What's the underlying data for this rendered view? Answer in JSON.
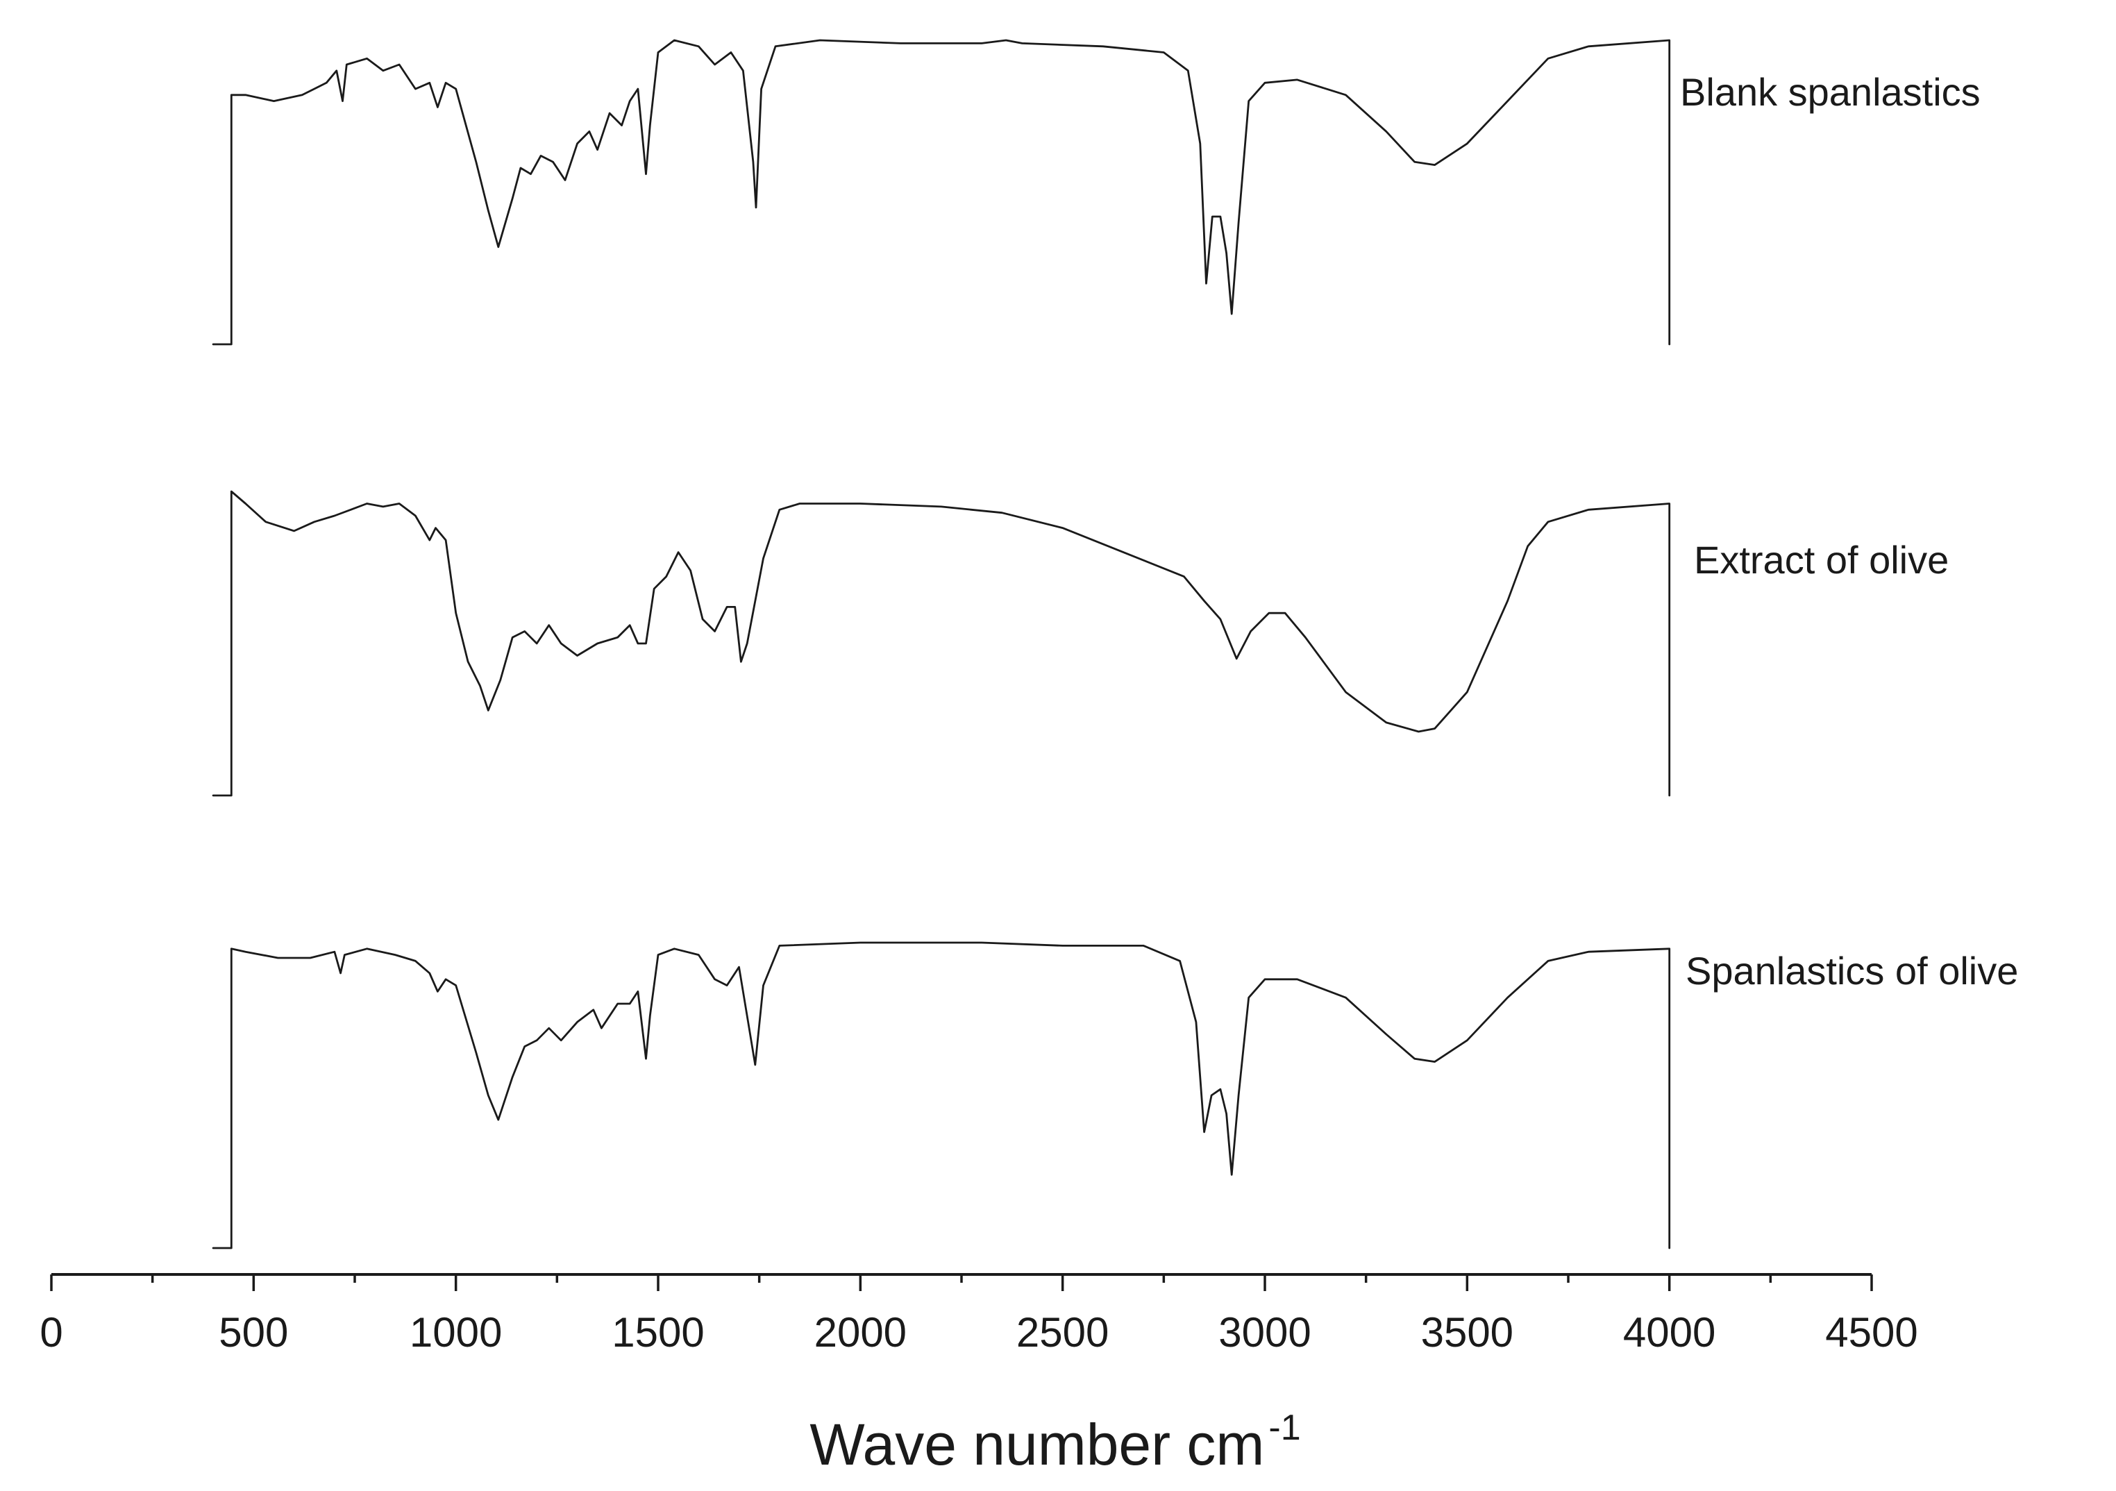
{
  "chart_data": {
    "type": "line",
    "title": "",
    "xlabel": "Wave number cm",
    "xlabel_superscript": "-1",
    "ylabel": "",
    "xlim": [
      0,
      4500
    ],
    "x_ticks": [
      "0",
      "500",
      "1000",
      "1500",
      "2000",
      "2500",
      "3000",
      "3500",
      "4000",
      "4500"
    ],
    "grid": false,
    "legend": "labels at right end of each trace",
    "stacked_offset": true,
    "series": [
      {
        "name": "Blank spanlastics",
        "points": [
          [
            400,
            0
          ],
          [
            445,
            0
          ],
          [
            445,
            0.82
          ],
          [
            480,
            0.82
          ],
          [
            550,
            0.8
          ],
          [
            620,
            0.82
          ],
          [
            680,
            0.86
          ],
          [
            705,
            0.9
          ],
          [
            720,
            0.8
          ],
          [
            730,
            0.92
          ],
          [
            780,
            0.94
          ],
          [
            820,
            0.9
          ],
          [
            860,
            0.92
          ],
          [
            900,
            0.84
          ],
          [
            935,
            0.86
          ],
          [
            955,
            0.78
          ],
          [
            975,
            0.86
          ],
          [
            1000,
            0.84
          ],
          [
            1050,
            0.6
          ],
          [
            1080,
            0.44
          ],
          [
            1105,
            0.32
          ],
          [
            1140,
            0.48
          ],
          [
            1160,
            0.58
          ],
          [
            1185,
            0.56
          ],
          [
            1210,
            0.62
          ],
          [
            1240,
            0.6
          ],
          [
            1270,
            0.54
          ],
          [
            1300,
            0.66
          ],
          [
            1330,
            0.7
          ],
          [
            1350,
            0.64
          ],
          [
            1380,
            0.76
          ],
          [
            1410,
            0.72
          ],
          [
            1430,
            0.8
          ],
          [
            1450,
            0.84
          ],
          [
            1470,
            0.56
          ],
          [
            1480,
            0.72
          ],
          [
            1500,
            0.96
          ],
          [
            1540,
            1.0
          ],
          [
            1600,
            0.98
          ],
          [
            1640,
            0.92
          ],
          [
            1680,
            0.96
          ],
          [
            1710,
            0.9
          ],
          [
            1735,
            0.6
          ],
          [
            1742,
            0.45
          ],
          [
            1755,
            0.84
          ],
          [
            1790,
            0.98
          ],
          [
            1900,
            1.0
          ],
          [
            2100,
            0.99
          ],
          [
            2300,
            0.99
          ],
          [
            2360,
            1.0
          ],
          [
            2400,
            0.99
          ],
          [
            2600,
            0.98
          ],
          [
            2750,
            0.96
          ],
          [
            2810,
            0.9
          ],
          [
            2840,
            0.66
          ],
          [
            2855,
            0.2
          ],
          [
            2870,
            0.42
          ],
          [
            2890,
            0.42
          ],
          [
            2905,
            0.3
          ],
          [
            2918,
            0.1
          ],
          [
            2935,
            0.4
          ],
          [
            2960,
            0.8
          ],
          [
            3000,
            0.86
          ],
          [
            3080,
            0.87
          ],
          [
            3200,
            0.82
          ],
          [
            3300,
            0.7
          ],
          [
            3370,
            0.6
          ],
          [
            3420,
            0.59
          ],
          [
            3500,
            0.66
          ],
          [
            3600,
            0.8
          ],
          [
            3700,
            0.94
          ],
          [
            3800,
            0.98
          ],
          [
            4000,
            1.0
          ],
          [
            4000,
            0
          ]
        ]
      },
      {
        "name": "Extract of olive",
        "points": [
          [
            400,
            0
          ],
          [
            445,
            0
          ],
          [
            445,
            1.0
          ],
          [
            480,
            0.96
          ],
          [
            530,
            0.9
          ],
          [
            600,
            0.87
          ],
          [
            650,
            0.9
          ],
          [
            700,
            0.92
          ],
          [
            740,
            0.94
          ],
          [
            780,
            0.96
          ],
          [
            820,
            0.95
          ],
          [
            860,
            0.96
          ],
          [
            900,
            0.92
          ],
          [
            935,
            0.84
          ],
          [
            950,
            0.88
          ],
          [
            975,
            0.84
          ],
          [
            1000,
            0.6
          ],
          [
            1030,
            0.44
          ],
          [
            1060,
            0.36
          ],
          [
            1080,
            0.28
          ],
          [
            1110,
            0.38
          ],
          [
            1140,
            0.52
          ],
          [
            1170,
            0.54
          ],
          [
            1200,
            0.5
          ],
          [
            1230,
            0.56
          ],
          [
            1260,
            0.5
          ],
          [
            1300,
            0.46
          ],
          [
            1350,
            0.5
          ],
          [
            1400,
            0.52
          ],
          [
            1430,
            0.56
          ],
          [
            1450,
            0.5
          ],
          [
            1470,
            0.5
          ],
          [
            1490,
            0.68
          ],
          [
            1520,
            0.72
          ],
          [
            1550,
            0.8
          ],
          [
            1580,
            0.74
          ],
          [
            1610,
            0.58
          ],
          [
            1640,
            0.54
          ],
          [
            1670,
            0.62
          ],
          [
            1690,
            0.62
          ],
          [
            1705,
            0.44
          ],
          [
            1720,
            0.5
          ],
          [
            1760,
            0.78
          ],
          [
            1800,
            0.94
          ],
          [
            1850,
            0.96
          ],
          [
            2000,
            0.96
          ],
          [
            2200,
            0.95
          ],
          [
            2350,
            0.93
          ],
          [
            2500,
            0.88
          ],
          [
            2650,
            0.8
          ],
          [
            2800,
            0.72
          ],
          [
            2850,
            0.64
          ],
          [
            2890,
            0.58
          ],
          [
            2930,
            0.45
          ],
          [
            2965,
            0.54
          ],
          [
            3010,
            0.6
          ],
          [
            3050,
            0.6
          ],
          [
            3100,
            0.52
          ],
          [
            3200,
            0.34
          ],
          [
            3300,
            0.24
          ],
          [
            3380,
            0.21
          ],
          [
            3420,
            0.22
          ],
          [
            3500,
            0.34
          ],
          [
            3600,
            0.64
          ],
          [
            3650,
            0.82
          ],
          [
            3700,
            0.9
          ],
          [
            3800,
            0.94
          ],
          [
            4000,
            0.96
          ],
          [
            4000,
            0
          ]
        ]
      },
      {
        "name": "Spanlastics of olive",
        "points": [
          [
            400,
            0
          ],
          [
            445,
            0
          ],
          [
            445,
            0.98
          ],
          [
            480,
            0.97
          ],
          [
            560,
            0.95
          ],
          [
            640,
            0.95
          ],
          [
            700,
            0.97
          ],
          [
            715,
            0.9
          ],
          [
            725,
            0.96
          ],
          [
            780,
            0.98
          ],
          [
            850,
            0.96
          ],
          [
            900,
            0.94
          ],
          [
            935,
            0.9
          ],
          [
            955,
            0.84
          ],
          [
            975,
            0.88
          ],
          [
            1000,
            0.86
          ],
          [
            1050,
            0.64
          ],
          [
            1080,
            0.5
          ],
          [
            1105,
            0.42
          ],
          [
            1140,
            0.56
          ],
          [
            1170,
            0.66
          ],
          [
            1200,
            0.68
          ],
          [
            1230,
            0.72
          ],
          [
            1260,
            0.68
          ],
          [
            1300,
            0.74
          ],
          [
            1340,
            0.78
          ],
          [
            1360,
            0.72
          ],
          [
            1400,
            0.8
          ],
          [
            1430,
            0.8
          ],
          [
            1450,
            0.84
          ],
          [
            1470,
            0.62
          ],
          [
            1480,
            0.76
          ],
          [
            1500,
            0.96
          ],
          [
            1540,
            0.98
          ],
          [
            1600,
            0.96
          ],
          [
            1640,
            0.88
          ],
          [
            1670,
            0.86
          ],
          [
            1700,
            0.92
          ],
          [
            1725,
            0.72
          ],
          [
            1740,
            0.6
          ],
          [
            1760,
            0.86
          ],
          [
            1800,
            0.99
          ],
          [
            2000,
            1.0
          ],
          [
            2300,
            1.0
          ],
          [
            2500,
            0.99
          ],
          [
            2700,
            0.99
          ],
          [
            2790,
            0.94
          ],
          [
            2830,
            0.74
          ],
          [
            2850,
            0.38
          ],
          [
            2868,
            0.5
          ],
          [
            2890,
            0.52
          ],
          [
            2905,
            0.44
          ],
          [
            2918,
            0.24
          ],
          [
            2935,
            0.5
          ],
          [
            2960,
            0.82
          ],
          [
            3000,
            0.88
          ],
          [
            3080,
            0.88
          ],
          [
            3200,
            0.82
          ],
          [
            3300,
            0.7
          ],
          [
            3370,
            0.62
          ],
          [
            3420,
            0.61
          ],
          [
            3500,
            0.68
          ],
          [
            3600,
            0.82
          ],
          [
            3700,
            0.94
          ],
          [
            3800,
            0.97
          ],
          [
            4000,
            0.98
          ],
          [
            4000,
            0
          ]
        ]
      }
    ]
  }
}
